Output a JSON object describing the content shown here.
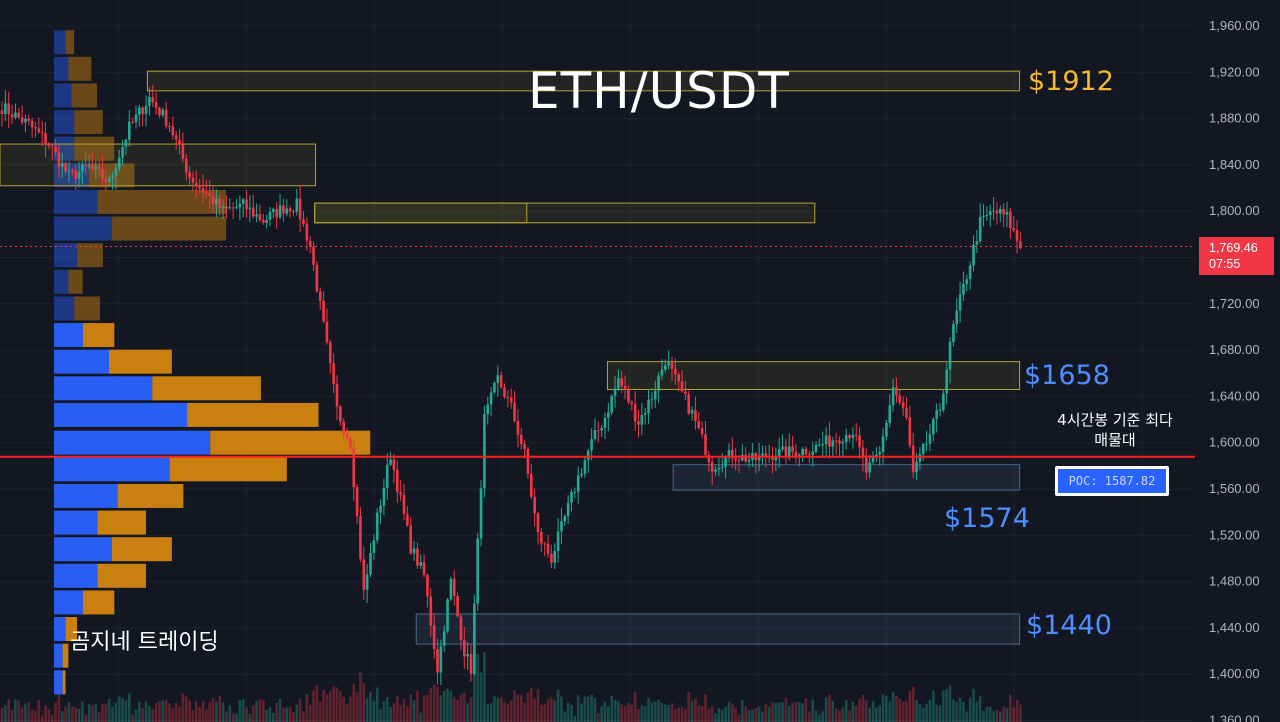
{
  "colors": {
    "background": "#131722",
    "up": "#22ab94",
    "down": "#f23645",
    "profile_buy": "#2962ff",
    "profile_sell": "#d4860f",
    "zone_border_yellow": "#b5a431",
    "zone_border_blue": "#4a6a8a",
    "poc_line": "#ff1f1f",
    "label_gold": "#f5b82e",
    "label_blue": "#4d8fff",
    "axis_text": "#b2b5be"
  },
  "chart_data": {
    "type": "candlestick",
    "title": "ETH/USDT",
    "watermark": "곰지네 트레이딩",
    "y_axis": {
      "ylim": [
        1360,
        1960
      ],
      "ticks": [
        1960,
        1920,
        1880,
        1840,
        1800,
        1760,
        1720,
        1680,
        1640,
        1600,
        1560,
        1520,
        1480,
        1440,
        1400,
        1360
      ],
      "tick_labels": [
        "1,960.00",
        "1,920.00",
        "1,880.00",
        "1,840.00",
        "1,800.00",
        "1,760.00",
        "1,720.00",
        "1,680.00",
        "1,640.00",
        "1,600.00",
        "1,560.00",
        "1,520.00",
        "1,480.00",
        "1,440.00",
        "1,400.00",
        "1,360.00"
      ],
      "grid": true
    },
    "last_price": {
      "label": "1,769.46",
      "countdown": "07:55",
      "value": 1769.46
    },
    "poc": {
      "value": 1587.82,
      "label": "POC: 1587.82",
      "note": "4시간봉 기준 최다 매물대"
    },
    "levels": [
      {
        "label": "$1912",
        "value": 1912,
        "color": "gold"
      },
      {
        "label": "$1658",
        "value": 1658,
        "color": "blue"
      },
      {
        "label": "$1574",
        "value": 1574,
        "color": "blue"
      },
      {
        "label": "$1440",
        "value": 1440,
        "color": "blue"
      }
    ],
    "zones": [
      {
        "type": "resistance",
        "top": 1921,
        "bottom": 1904,
        "start": 0.12,
        "end": 0.795
      },
      {
        "type": "resistance",
        "top": 1858,
        "bottom": 1822,
        "start": 0.0,
        "end": 0.245
      },
      {
        "type": "resistance",
        "top": 1807,
        "bottom": 1790,
        "start": 0.26,
        "end": 0.635
      },
      {
        "type": "resistance",
        "top": 1807,
        "bottom": 1790,
        "start": 0.26,
        "end": 0.41
      },
      {
        "type": "supply",
        "top": 1670,
        "bottom": 1646,
        "start": 0.505,
        "end": 0.795
      },
      {
        "type": "demand",
        "top": 1581,
        "bottom": 1559,
        "start": 0.56,
        "end": 0.795
      },
      {
        "type": "support",
        "top": 1452,
        "bottom": 1426,
        "start": 0.345,
        "end": 0.795
      }
    ],
    "volume_profile": {
      "buckets": [
        {
          "price": 1946,
          "buy": 4,
          "sell": 3
        },
        {
          "price": 1923,
          "buy": 5,
          "sell": 8
        },
        {
          "price": 1900,
          "buy": 6,
          "sell": 9
        },
        {
          "price": 1877,
          "buy": 7,
          "sell": 10
        },
        {
          "price": 1854,
          "buy": 7,
          "sell": 14
        },
        {
          "price": 1831,
          "buy": 12,
          "sell": 16
        },
        {
          "price": 1808,
          "buy": 15,
          "sell": 45
        },
        {
          "price": 1785,
          "buy": 20,
          "sell": 40
        },
        {
          "price": 1762,
          "buy": 8,
          "sell": 9
        },
        {
          "price": 1739,
          "buy": 5,
          "sell": 5
        },
        {
          "price": 1716,
          "buy": 7,
          "sell": 9
        },
        {
          "price": 1693,
          "buy": 10,
          "sell": 11
        },
        {
          "price": 1670,
          "buy": 19,
          "sell": 22
        },
        {
          "price": 1647,
          "buy": 34,
          "sell": 38
        },
        {
          "price": 1624,
          "buy": 46,
          "sell": 46
        },
        {
          "price": 1600,
          "buy": 54,
          "sell": 56
        },
        {
          "price": 1577,
          "buy": 40,
          "sell": 41
        },
        {
          "price": 1554,
          "buy": 22,
          "sell": 23
        },
        {
          "price": 1531,
          "buy": 15,
          "sell": 17
        },
        {
          "price": 1508,
          "buy": 20,
          "sell": 21
        },
        {
          "price": 1485,
          "buy": 15,
          "sell": 17
        },
        {
          "price": 1462,
          "buy": 10,
          "sell": 11
        },
        {
          "price": 1439,
          "buy": 4,
          "sell": 4
        },
        {
          "price": 1416,
          "buy": 3,
          "sell": 2
        },
        {
          "price": 1393,
          "buy": 3,
          "sell": 1
        }
      ]
    },
    "series": [
      {
        "name": "",
        "anchors": [
          [
            0,
            1890
          ],
          [
            8,
            1875
          ],
          [
            14,
            1858
          ],
          [
            20,
            1830
          ],
          [
            26,
            1838
          ],
          [
            32,
            1825
          ],
          [
            38,
            1872
          ],
          [
            44,
            1898
          ],
          [
            50,
            1875
          ],
          [
            56,
            1830
          ],
          [
            62,
            1812
          ],
          [
            66,
            1800
          ],
          [
            72,
            1805
          ],
          [
            78,
            1792
          ],
          [
            84,
            1803
          ],
          [
            88,
            1805
          ],
          [
            92,
            1770
          ],
          [
            96,
            1700
          ],
          [
            100,
            1628
          ],
          [
            104,
            1600
          ],
          [
            108,
            1470
          ],
          [
            112,
            1535
          ],
          [
            116,
            1590
          ],
          [
            122,
            1510
          ],
          [
            126,
            1485
          ],
          [
            130,
            1405
          ],
          [
            134,
            1480
          ],
          [
            138,
            1420
          ],
          [
            140,
            1405
          ],
          [
            144,
            1620
          ],
          [
            148,
            1655
          ],
          [
            152,
            1630
          ],
          [
            156,
            1590
          ],
          [
            160,
            1520
          ],
          [
            164,
            1500
          ],
          [
            168,
            1535
          ],
          [
            172,
            1570
          ],
          [
            176,
            1600
          ],
          [
            180,
            1622
          ],
          [
            184,
            1655
          ],
          [
            190,
            1618
          ],
          [
            194,
            1640
          ],
          [
            198,
            1672
          ],
          [
            202,
            1648
          ],
          [
            206,
            1625
          ],
          [
            212,
            1580
          ],
          [
            218,
            1590
          ],
          [
            224,
            1585
          ],
          [
            230,
            1590
          ],
          [
            236,
            1592
          ],
          [
            242,
            1595
          ],
          [
            248,
            1603
          ],
          [
            254,
            1610
          ],
          [
            258,
            1575
          ],
          [
            262,
            1590
          ],
          [
            266,
            1648
          ],
          [
            270,
            1620
          ],
          [
            272,
            1572
          ],
          [
            276,
            1600
          ],
          [
            280,
            1630
          ],
          [
            284,
            1700
          ],
          [
            288,
            1745
          ],
          [
            292,
            1790
          ],
          [
            296,
            1800
          ],
          [
            300,
            1795
          ],
          [
            304,
            1768
          ]
        ]
      }
    ]
  }
}
